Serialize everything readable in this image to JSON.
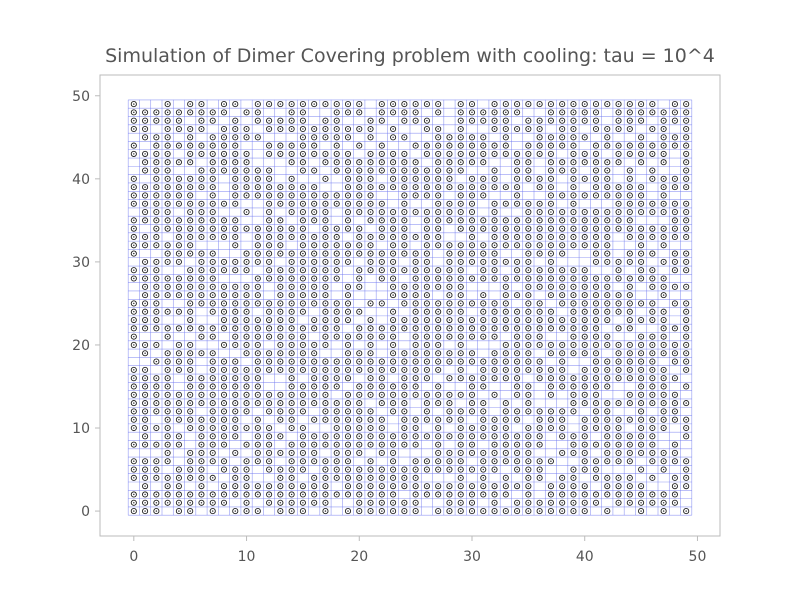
{
  "chart_data": {
    "type": "scatter",
    "title": "Simulation of Dimer Covering problem with cooling: tau = 10^4",
    "xlabel": "",
    "ylabel": "",
    "xlim": [
      -3,
      52
    ],
    "ylim": [
      -3,
      52.5
    ],
    "xticks": [
      0,
      10,
      20,
      30,
      40,
      50
    ],
    "yticks": [
      0,
      10,
      20,
      30,
      40,
      50
    ],
    "xtick_labels": [
      "0",
      "10",
      "20",
      "30",
      "40",
      "50"
    ],
    "ytick_labels": [
      "0",
      "10",
      "20",
      "30",
      "40",
      "50"
    ],
    "lattice": {
      "x_range": [
        0,
        49
      ],
      "y_range": [
        0,
        49
      ],
      "step": 1
    },
    "grid": true,
    "legend": "none",
    "marker": "small open circle with centre dot at occupied lattice sites",
    "occupied_fraction_estimate": 0.8,
    "colors": {
      "grid": "#6f78f0",
      "marker": "#222222",
      "text": "#555555",
      "frame": "#bbbbbb"
    }
  }
}
